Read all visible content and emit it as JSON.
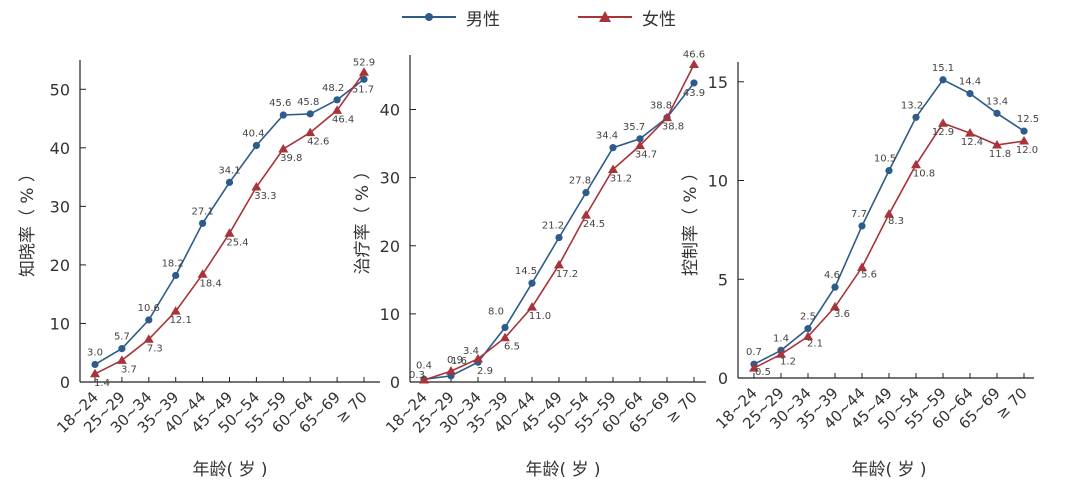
{
  "legend": {
    "male_label": "男性",
    "female_label": "女性"
  },
  "colors": {
    "male": "#2d5c8a",
    "female": "#a8343a",
    "axis": "#222222"
  },
  "chart_data": [
    {
      "type": "line",
      "title": "",
      "xlabel": "年龄( 岁 )",
      "ylabel": "知晓率（ % ）",
      "categories": [
        "18~24",
        "25~29",
        "30~34",
        "35~39",
        "40~44",
        "45~49",
        "50~54",
        "55~59",
        "60~64",
        "65~69",
        "≥ 70"
      ],
      "ylim": [
        0,
        55
      ],
      "yticks": [
        0,
        10,
        20,
        30,
        40,
        50
      ],
      "grid": false,
      "legend": "top",
      "series": [
        {
          "name": "男性",
          "marker": "circle",
          "values": [
            3.0,
            5.7,
            10.6,
            18.2,
            27.1,
            34.1,
            40.4,
            45.6,
            45.8,
            48.2,
            51.7
          ],
          "labels": [
            "3.0",
            "5.7",
            "10.6",
            "18.2",
            "27.1",
            "34.1",
            "40.4",
            "45.6",
            "45.8",
            "48.2",
            "51.7"
          ]
        },
        {
          "name": "女性",
          "marker": "triangle",
          "values": [
            1.4,
            3.7,
            7.3,
            12.1,
            18.4,
            25.4,
            33.3,
            39.8,
            42.6,
            46.4,
            52.9
          ],
          "labels": [
            "1.4",
            "3.7",
            "7.3",
            "12.1",
            "18.4",
            "25.4",
            "33.3",
            "39.8",
            "42.6",
            "46.4",
            "52.9"
          ]
        }
      ]
    },
    {
      "type": "line",
      "title": "",
      "xlabel": "年龄( 岁 )",
      "ylabel": "治疗率（ % ）",
      "categories": [
        "18~24",
        "25~29",
        "30~34",
        "35~39",
        "40~44",
        "45~49",
        "50~54",
        "55~59",
        "60~64",
        "65~69",
        "≥ 70"
      ],
      "ylim": [
        0,
        48
      ],
      "yticks": [
        0,
        10,
        20,
        30,
        40
      ],
      "grid": false,
      "legend": "top",
      "series": [
        {
          "name": "男性",
          "marker": "circle",
          "values": [
            0.4,
            0.9,
            2.9,
            8.0,
            14.5,
            21.2,
            27.8,
            34.4,
            35.7,
            38.8,
            43.9
          ],
          "labels": [
            "0.4",
            "0.9",
            "2.9",
            "8.0",
            "14.5",
            "21.2",
            "27.8",
            "34.4",
            "35.7",
            "38.8",
            "43.9"
          ]
        },
        {
          "name": "女性",
          "marker": "triangle",
          "values": [
            0.3,
            1.6,
            3.4,
            6.5,
            11.0,
            17.2,
            24.5,
            31.2,
            34.7,
            38.8,
            46.6
          ],
          "labels": [
            "0.3",
            "1.6",
            "3.4",
            "6.5",
            "11.0",
            "17.2",
            "24.5",
            "31.2",
            "34.7",
            "38.8",
            "46.6"
          ]
        }
      ]
    },
    {
      "type": "line",
      "title": "",
      "xlabel": "年龄( 岁 )",
      "ylabel": "控制率（ % ）",
      "categories": [
        "18~24",
        "25~29",
        "30~34",
        "35~39",
        "40~44",
        "45~49",
        "50~54",
        "55~59",
        "60~64",
        "65~69",
        "≥ 70"
      ],
      "ylim": [
        0,
        16
      ],
      "yticks": [
        0,
        5,
        10,
        15
      ],
      "grid": false,
      "legend": "top",
      "series": [
        {
          "name": "男性",
          "marker": "circle",
          "values": [
            0.7,
            1.4,
            2.5,
            4.6,
            7.7,
            10.5,
            13.2,
            15.1,
            14.4,
            13.4,
            12.5
          ],
          "labels": [
            "0.7",
            "1.4",
            "2.5",
            "4.6",
            "7.7",
            "10.5",
            "13.2",
            "15.1",
            "14.4",
            "13.4",
            "12.5"
          ]
        },
        {
          "name": "女性",
          "marker": "triangle",
          "values": [
            0.5,
            1.2,
            2.1,
            3.6,
            5.6,
            8.3,
            10.8,
            12.9,
            12.4,
            11.8,
            12.0
          ],
          "labels": [
            "0.5",
            "1.2",
            "2.1",
            "3.6",
            "5.6",
            "8.3",
            "10.8",
            "12.9",
            "12.4",
            "11.8",
            "12.0"
          ]
        }
      ]
    }
  ]
}
